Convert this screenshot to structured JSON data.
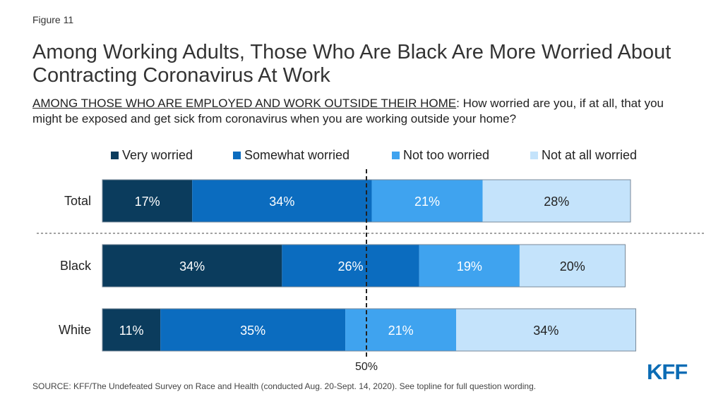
{
  "figure_label": "Figure 11",
  "title": "Among Working Adults, Those Who Are Black Are More Worried About Contracting Coronavirus At Work",
  "subtitle_underlined": "AMONG THOSE WHO ARE EMPLOYED AND WORK OUTSIDE THEIR HOME",
  "subtitle_rest": ": How worried are you, if at all, that you might be exposed and get sick from coronavirus when you are working outside your home?",
  "source": "SOURCE: KFF/The Undefeated Survey on Race and Health (conducted Aug. 20-Sept. 14, 2020). See topline for full question wording.",
  "logo_text": "KFF",
  "chart_data": {
    "type": "bar",
    "orientation": "horizontal",
    "stacked": true,
    "categories": [
      "Total",
      "Black",
      "White"
    ],
    "series": [
      {
        "name": "Very worried",
        "color": "#0b3c5d",
        "values": [
          17,
          34,
          11
        ]
      },
      {
        "name": "Somewhat worried",
        "color": "#0b6cbf",
        "values": [
          34,
          26,
          35
        ]
      },
      {
        "name": "Not too worried",
        "color": "#3fa3ef",
        "values": [
          21,
          19,
          21
        ]
      },
      {
        "name": "Not at all worried",
        "color": "#c4e3fb",
        "values": [
          28,
          20,
          34
        ]
      }
    ],
    "data_labels": [
      [
        "17%",
        "34%",
        "21%",
        "28%"
      ],
      [
        "34%",
        "26%",
        "19%",
        "20%"
      ],
      [
        "11%",
        "35%",
        "21%",
        "34%"
      ]
    ],
    "reference_line": {
      "value": 50,
      "label": "50%",
      "style": "dashed"
    },
    "group_separator_after": "Total",
    "legend_position": "top",
    "xlim": [
      0,
      100
    ]
  }
}
